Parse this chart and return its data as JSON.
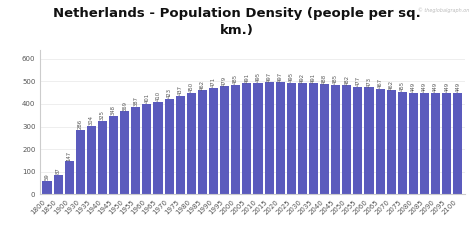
{
  "title": "Netherlands - Population Density (people per sq.\nkm.)",
  "categories": [
    "1800",
    "1850",
    "1900",
    "1930",
    "1935",
    "1940",
    "1945",
    "1950",
    "1955",
    "1960",
    "1965",
    "1970",
    "1975",
    "1980",
    "1985",
    "1990",
    "1995",
    "2000",
    "2005",
    "2010",
    "2015",
    "2020",
    "2025",
    "2030",
    "2035",
    "2040",
    "2045",
    "2050",
    "2055",
    "2060",
    "2065",
    "2070",
    "2075",
    "2080",
    "2085",
    "2090",
    "2095",
    "2100"
  ],
  "values": [
    59,
    87,
    147,
    286,
    304,
    325,
    348,
    369,
    387,
    401,
    410,
    423,
    437,
    450,
    462,
    471,
    479,
    485,
    491,
    495,
    497,
    497,
    495,
    492,
    491,
    488,
    485,
    482,
    477,
    473,
    467,
    462,
    455,
    449,
    449,
    449,
    449,
    449
  ],
  "bar_color": "#5b5bbd",
  "background_color": "#ffffff",
  "ylim": [
    0,
    640
  ],
  "yticks": [
    0,
    100,
    200,
    300,
    400,
    500,
    600
  ],
  "watermark": "© theglobalgraph.on",
  "title_fontsize": 9.5,
  "tick_fontsize": 5.0,
  "value_fontsize": 3.8,
  "label_color": "#555555",
  "spine_color": "#cccccc"
}
